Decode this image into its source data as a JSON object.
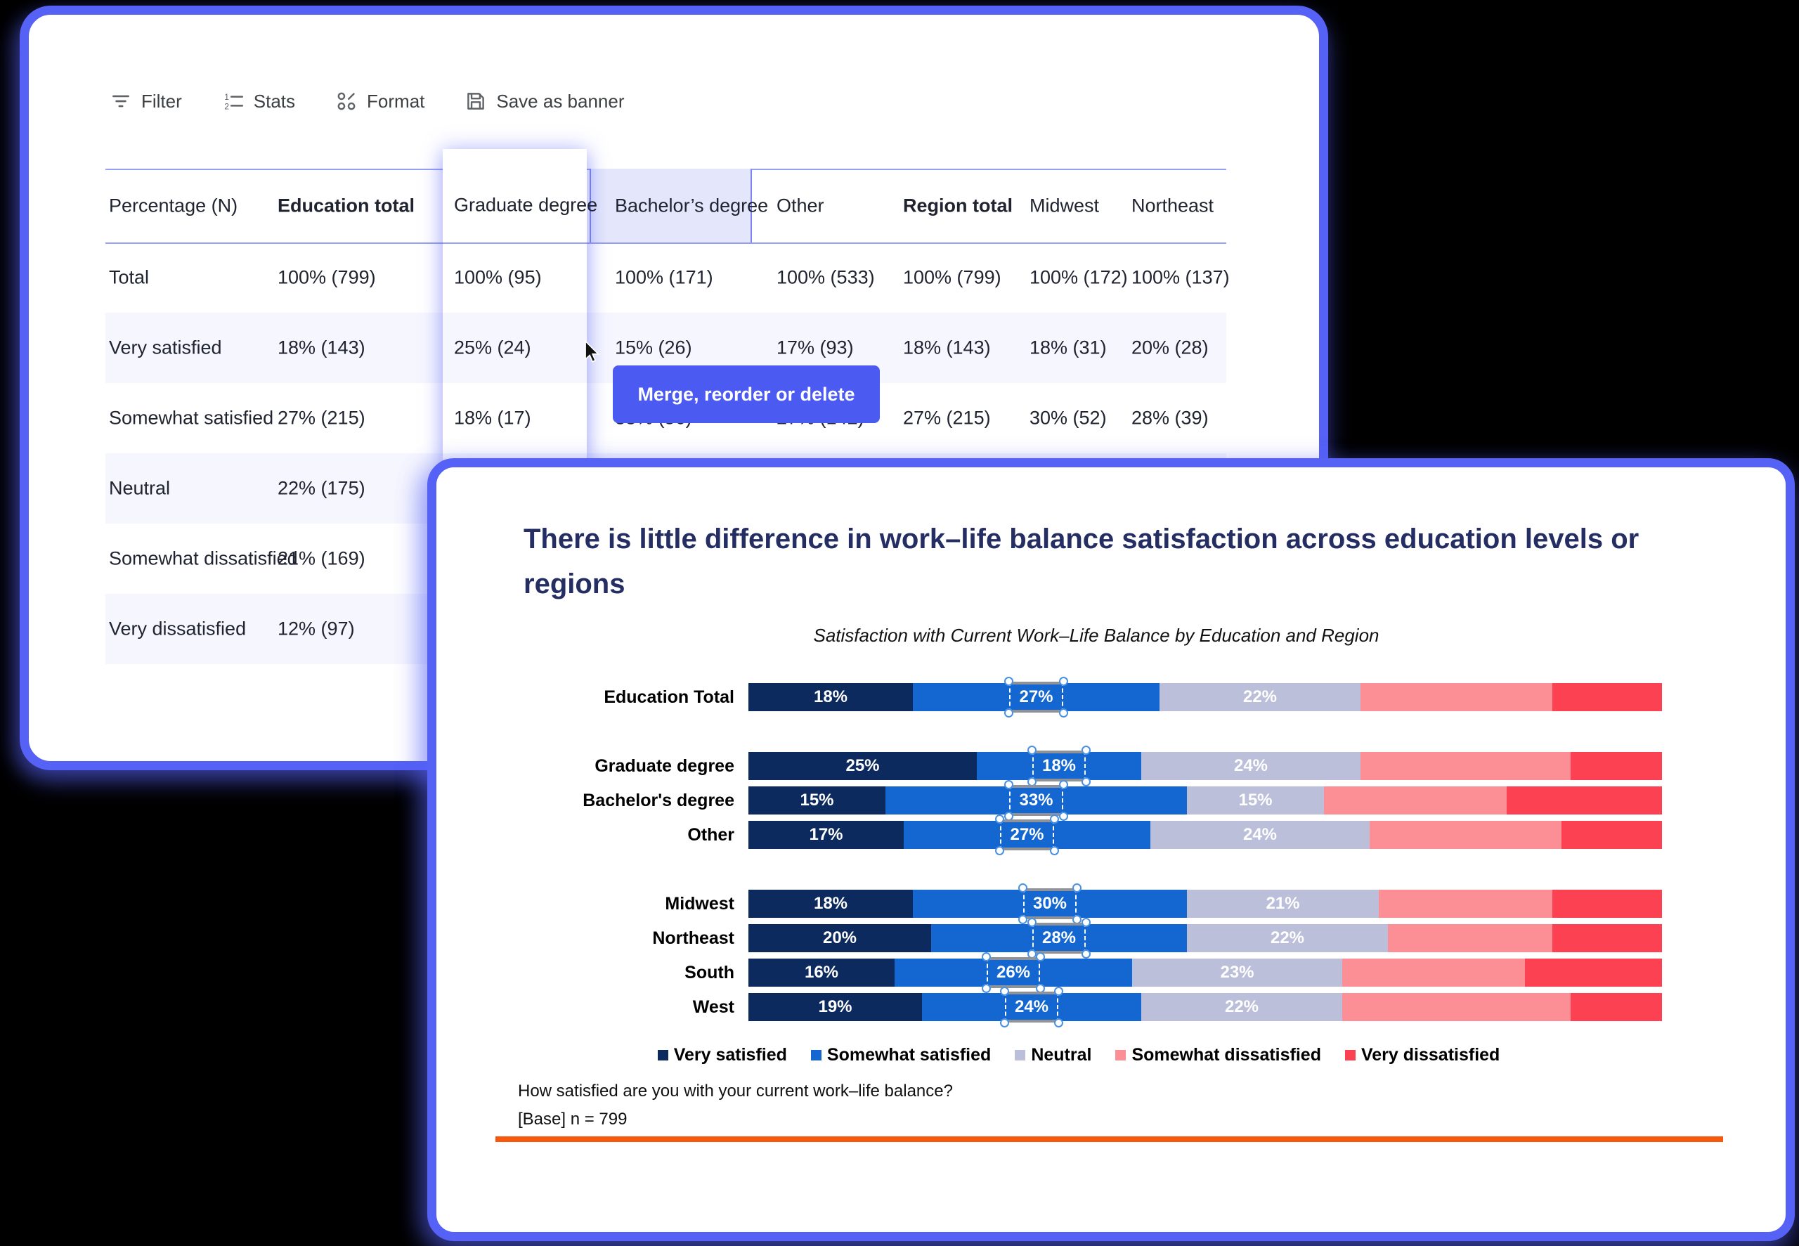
{
  "colors": {
    "card_border": "#5661F6",
    "tooltip_bg": "#4B5AF1",
    "row_stripe": "#F5F6FE",
    "highlight_cell": "#E4E7FB",
    "header_line": "#97A0F5",
    "orange_rule": "#F8580D",
    "title_navy": "#242E63"
  },
  "toolbar": {
    "items": [
      {
        "label": "Filter",
        "icon": "filter-icon"
      },
      {
        "label": "Stats",
        "icon": "stats-icon"
      },
      {
        "label": "Format",
        "icon": "format-icon"
      },
      {
        "label": "Save as banner",
        "icon": "save-icon"
      }
    ]
  },
  "table": {
    "columns": [
      {
        "key": "label",
        "header": "Percentage (N)",
        "bold": false
      },
      {
        "key": "edu_total",
        "header": "Education total",
        "bold": true
      },
      {
        "key": "bachelors",
        "header": "Bachelor’s degree",
        "bold": false,
        "highlight": true
      },
      {
        "key": "other",
        "header": "Other",
        "bold": false
      },
      {
        "key": "region_total",
        "header": "Region total",
        "bold": true
      },
      {
        "key": "midwest",
        "header": "Midwest",
        "bold": false
      },
      {
        "key": "northeast",
        "header": "Northeast",
        "bold": false
      }
    ],
    "rows": [
      {
        "label": "Total",
        "edu_total": "100% (799)",
        "bachelors": "100% (171)",
        "other": "100% (533)",
        "region_total": "100% (799)",
        "midwest": "100% (172)",
        "northeast": "100% (137)"
      },
      {
        "label": "Very satisfied",
        "edu_total": "18% (143)",
        "bachelors": "15% (26)",
        "other": "17% (93)",
        "region_total": "18% (143)",
        "midwest": "18% (31)",
        "northeast": "20% (28)"
      },
      {
        "label": "Somewhat satisfied",
        "edu_total": "27% (215)",
        "bachelors": "33% (56)",
        "other": "27% (142)",
        "region_total": "27% (215)",
        "midwest": "30% (52)",
        "northeast": "28% (39)"
      },
      {
        "label": "Neutral",
        "edu_total": "22% (175)"
      },
      {
        "label": "Somewhat dissatisfied",
        "edu_total": "21% (169)"
      },
      {
        "label": "Very dissatisfied",
        "edu_total": "12% (97)"
      }
    ]
  },
  "drag": {
    "column_header": "Graduate degree",
    "column_values": [
      "100% (95)",
      "25% (24)",
      "18% (17)"
    ],
    "tooltip": "Merge, reorder or delete"
  },
  "chart_data": {
    "type": "bar",
    "orientation": "horizontal-stacked",
    "title": "There is little difference in work–life balance satisfaction across education levels or regions",
    "subtitle": "Satisfaction with Current Work–Life Balance by Education and Region",
    "xlim": [
      0,
      100
    ],
    "legend_position": "bottom",
    "series": [
      "Very satisfied",
      "Somewhat satisfied",
      "Neutral",
      "Somewhat dissatisfied",
      "Very dissatisfied"
    ],
    "series_colors": [
      "#0D2A5E",
      "#1467D1",
      "#BCBFDA",
      "#FC8E95",
      "#FC4252"
    ],
    "selected_series": "Somewhat satisfied",
    "rows": [
      {
        "category": "Education Total",
        "values": [
          18,
          27,
          22,
          21,
          12
        ],
        "labels": [
          "18%",
          "27%",
          "22%",
          "",
          ""
        ]
      },
      {
        "category": "Graduate degree",
        "values": [
          25,
          18,
          24,
          23,
          10
        ],
        "labels": [
          "25%",
          "18%",
          "24%",
          "",
          ""
        ]
      },
      {
        "category": "Bachelor's degree",
        "values": [
          15,
          33,
          15,
          20,
          17
        ],
        "labels": [
          "15%",
          "33%",
          "15%",
          "",
          ""
        ]
      },
      {
        "category": "Other",
        "values": [
          17,
          27,
          24,
          21,
          11
        ],
        "labels": [
          "17%",
          "27%",
          "24%",
          "",
          ""
        ]
      },
      {
        "category": "Midwest",
        "values": [
          18,
          30,
          21,
          19,
          12
        ],
        "labels": [
          "18%",
          "30%",
          "21%",
          "",
          ""
        ]
      },
      {
        "category": "Northeast",
        "values": [
          20,
          28,
          22,
          18,
          12
        ],
        "labels": [
          "20%",
          "28%",
          "22%",
          "",
          ""
        ]
      },
      {
        "category": "South",
        "values": [
          16,
          26,
          23,
          20,
          15
        ],
        "labels": [
          "16%",
          "26%",
          "23%",
          "",
          ""
        ]
      },
      {
        "category": "West",
        "values": [
          19,
          24,
          22,
          25,
          10
        ],
        "labels": [
          "19%",
          "24%",
          "22%",
          "",
          ""
        ]
      }
    ]
  },
  "footer": {
    "question": "How satisfied are you with your current work–life balance?",
    "base": "[Base] n = 799"
  }
}
